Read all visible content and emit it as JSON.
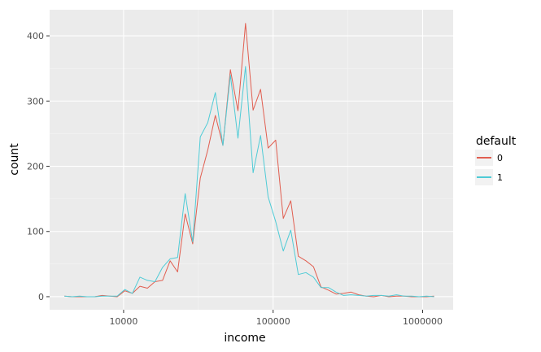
{
  "chart_data": {
    "type": "line",
    "xlabel": "income",
    "ylabel": "count",
    "x_scale": "log10",
    "xlim": [
      3200,
      1600000
    ],
    "ylim": [
      -20,
      440
    ],
    "x_ticks": [
      10000,
      100000,
      1000000
    ],
    "x_tick_labels": [
      "10000",
      "100000",
      "1000000"
    ],
    "y_ticks": [
      0,
      100,
      200,
      300,
      400
    ],
    "y_tick_labels": [
      "0",
      "100",
      "200",
      "300",
      "400"
    ],
    "grid": true,
    "panel_background": "#ebebeb",
    "legend": {
      "title": "default",
      "position": "right"
    },
    "series": [
      {
        "name": "0",
        "color": "#e15e50",
        "x": [
          4021,
          4517,
          5073,
          5697,
          6400,
          7188,
          8074,
          9069,
          10186,
          11441,
          12851,
          14435,
          16214,
          18212,
          20456,
          22976,
          25807,
          28987,
          32558,
          36570,
          41076,
          46137,
          51821,
          58206,
          65377,
          73432,
          82480,
          92642,
          104057,
          116877,
          131278,
          147452,
          165620,
          186026,
          208946,
          234690,
          263606,
          296085,
          332565,
          373541,
          419565,
          471260,
          529324,
          594543,
          667797,
          750077,
          842495,
          946300,
          1062900,
          1193900
        ],
        "y": [
          1,
          0,
          0,
          0,
          0,
          2,
          1,
          0,
          9,
          5,
          16,
          13,
          23,
          25,
          55,
          38,
          127,
          81,
          182,
          225,
          278,
          232,
          348,
          285,
          419,
          286,
          318,
          228,
          240,
          120,
          147,
          62,
          55,
          46,
          15,
          10,
          4,
          5,
          7,
          3,
          1,
          0,
          2,
          0,
          1,
          1,
          0,
          0,
          0,
          1
        ]
      },
      {
        "name": "1",
        "color": "#4fcbd6",
        "x": [
          4021,
          4517,
          5073,
          5697,
          6400,
          7188,
          8074,
          9069,
          10186,
          11441,
          12851,
          14435,
          16214,
          18212,
          20456,
          22976,
          25807,
          28987,
          32558,
          36570,
          41076,
          46137,
          51821,
          58206,
          65377,
          73432,
          82480,
          92642,
          104057,
          116877,
          131278,
          147452,
          165620,
          186026,
          208946,
          234690,
          263606,
          296085,
          332565,
          373541,
          419565,
          471260,
          529324,
          594543,
          667797,
          750077,
          842495,
          946300,
          1062900,
          1193900
        ],
        "y": [
          1,
          0,
          1,
          0,
          0,
          1,
          1,
          1,
          11,
          5,
          30,
          25,
          23,
          45,
          58,
          60,
          158,
          84,
          245,
          267,
          313,
          232,
          340,
          243,
          353,
          190,
          247,
          153,
          115,
          70,
          102,
          34,
          37,
          30,
          14,
          14,
          7,
          2,
          3,
          2,
          1,
          2,
          2,
          1,
          3,
          1,
          1,
          0,
          1,
          0
        ]
      }
    ]
  }
}
